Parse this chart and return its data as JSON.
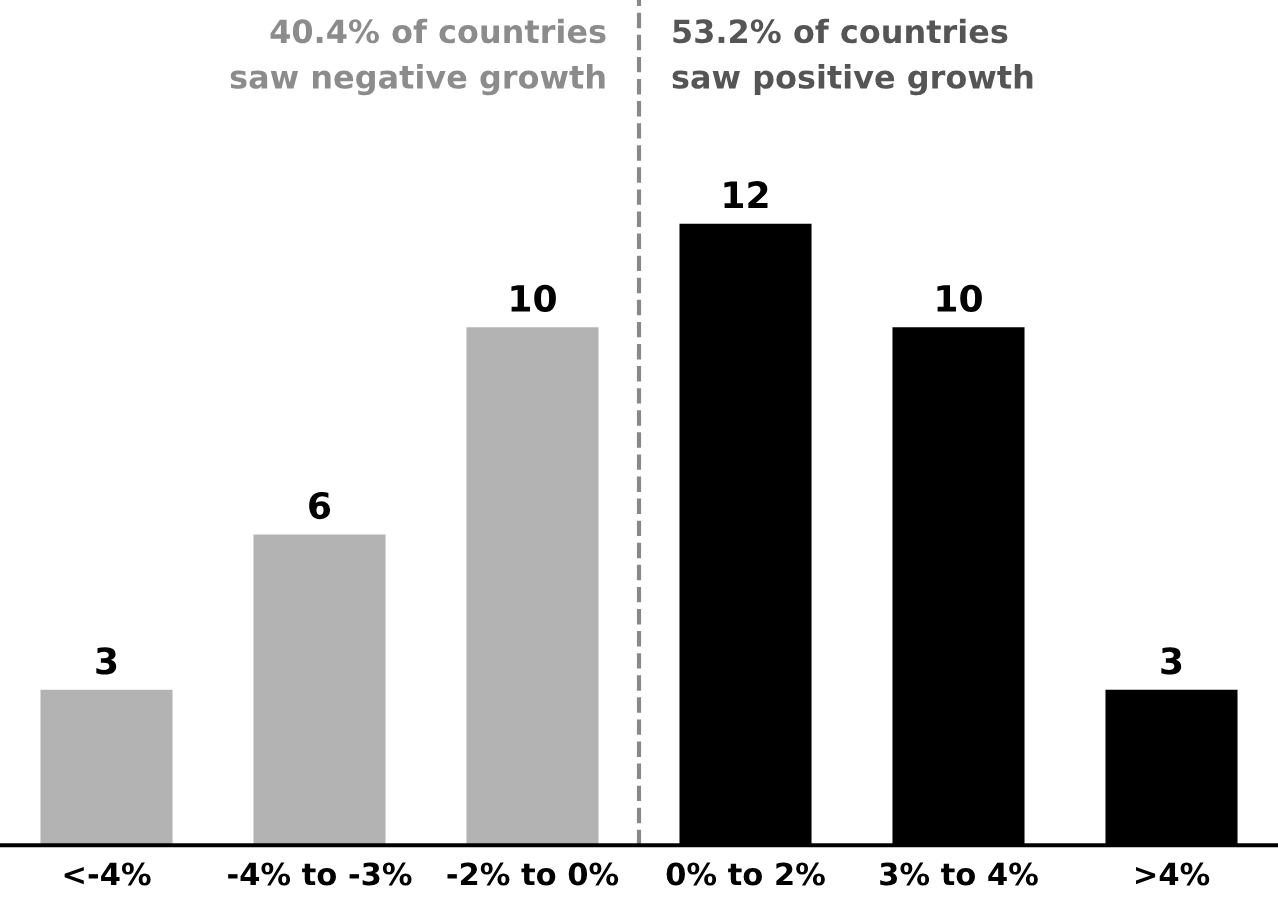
{
  "chart_data": {
    "type": "bar",
    "categories": [
      "<-4%",
      "-4% to -3%",
      "-2% to 0%",
      "0% to 2%",
      "3% to 4%",
      ">4%"
    ],
    "values": [
      3,
      6,
      10,
      12,
      10,
      3
    ],
    "colors": [
      "#b3b3b3",
      "#b3b3b3",
      "#b3b3b3",
      "#000000",
      "#000000",
      "#000000"
    ],
    "data_labels": true,
    "annotations": [
      "40.4% of countries\nsaw negative growth",
      "53.2% of countries\nsaw positive growth"
    ],
    "grid": false
  }
}
